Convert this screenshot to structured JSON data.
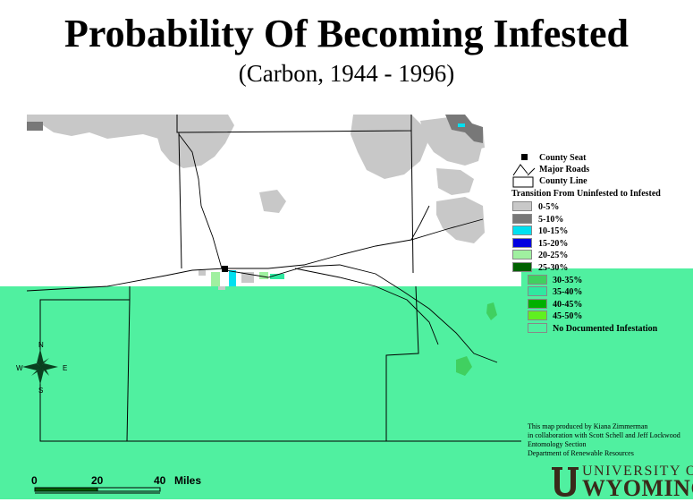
{
  "title": "Probability Of Becoming Infested",
  "subtitle": "(Carbon, 1944 - 1996)",
  "legend": {
    "county_seat": "County Seat",
    "major_roads": "Major Roads",
    "county_line": "County Line",
    "transition_heading": "Transition From Uninfested to Infested",
    "classes": [
      {
        "label": "0-5%",
        "color": "#c8c8c8"
      },
      {
        "label": "5-10%",
        "color": "#787878"
      },
      {
        "label": "10-15%",
        "color": "#00e0f0"
      },
      {
        "label": "15-20%",
        "color": "#0000e0"
      },
      {
        "label": "20-25%",
        "color": "#a0f0a0"
      },
      {
        "label": "25-30%",
        "color": "#006000"
      },
      {
        "label": "30-35%",
        "color": "#40d060"
      },
      {
        "label": "35-40%",
        "color": "#30e8a0"
      },
      {
        "label": "40-45%",
        "color": "#00b000"
      },
      {
        "label": "45-50%",
        "color": "#60f020"
      },
      {
        "label": "No Documented Infestation",
        "color": "#50f0a0"
      }
    ]
  },
  "compass": {
    "n": "N",
    "s": "S",
    "e": "E",
    "w": "W"
  },
  "scale": {
    "l0": "0",
    "l1": "20",
    "l2": "40",
    "unit": "Miles"
  },
  "credits": {
    "line1": "This map produced by Kiana Zimmerman",
    "line2": "in collaboration with Scott Schell and Jeff Lockwood",
    "line3": "Entomology Section",
    "line4": "Department of Renewable Resources"
  },
  "university": {
    "line1": "UNIVERSITY OF",
    "line2": "WYOMING"
  },
  "colors": {
    "background_fill": "#50f0a0",
    "light_gray": "#c8c8c8",
    "dark_gray": "#787878"
  }
}
